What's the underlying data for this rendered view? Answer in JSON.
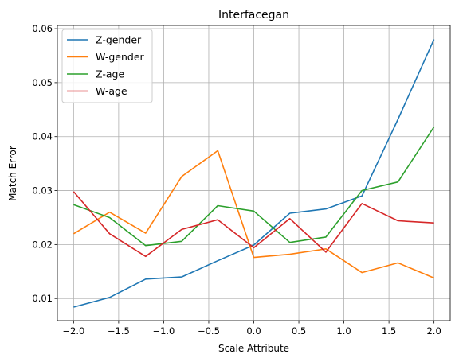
{
  "chart_data": {
    "type": "line",
    "title": "Interfacegan",
    "xlabel": "Scale Attribute",
    "ylabel": "Match Error",
    "xlim": [
      -2.18,
      2.18
    ],
    "ylim": [
      0.0059,
      0.0606
    ],
    "x_ticks": [
      -2.0,
      -1.5,
      -1.0,
      -0.5,
      0.0,
      0.5,
      1.0,
      1.5,
      2.0
    ],
    "x_tick_labels": [
      "−2.0",
      "−1.5",
      "−1.0",
      "−0.5",
      "0.0",
      "0.5",
      "1.0",
      "1.5",
      "2.0"
    ],
    "y_ticks": [
      0.01,
      0.02,
      0.03,
      0.04,
      0.05,
      0.06
    ],
    "y_tick_labels": [
      "0.01",
      "0.02",
      "0.03",
      "0.04",
      "0.05",
      "0.06"
    ],
    "grid": true,
    "legend_position": "top-left",
    "x": [
      -2.0,
      -1.6,
      -1.2,
      -0.8,
      -0.4,
      0.0,
      0.4,
      0.8,
      1.2,
      1.6,
      2.0
    ],
    "series": [
      {
        "name": "Z-gender",
        "color": "#1f77b4",
        "values": [
          0.0084,
          0.0102,
          0.0136,
          0.014,
          0.017,
          0.0199,
          0.0258,
          0.0266,
          0.029,
          0.0432,
          0.058
        ]
      },
      {
        "name": "W-gender",
        "color": "#ff7f0e",
        "values": [
          0.022,
          0.026,
          0.0221,
          0.0326,
          0.0374,
          0.0176,
          0.0182,
          0.0192,
          0.0148,
          0.0166,
          0.0138
        ]
      },
      {
        "name": "Z-age",
        "color": "#2ca02c",
        "values": [
          0.0274,
          0.025,
          0.0198,
          0.0206,
          0.0272,
          0.0262,
          0.0204,
          0.0214,
          0.03,
          0.0316,
          0.0418
        ]
      },
      {
        "name": "W-age",
        "color": "#d62728",
        "values": [
          0.0298,
          0.022,
          0.0178,
          0.0228,
          0.0246,
          0.0194,
          0.0248,
          0.0186,
          0.0276,
          0.0244,
          0.024
        ]
      }
    ]
  }
}
